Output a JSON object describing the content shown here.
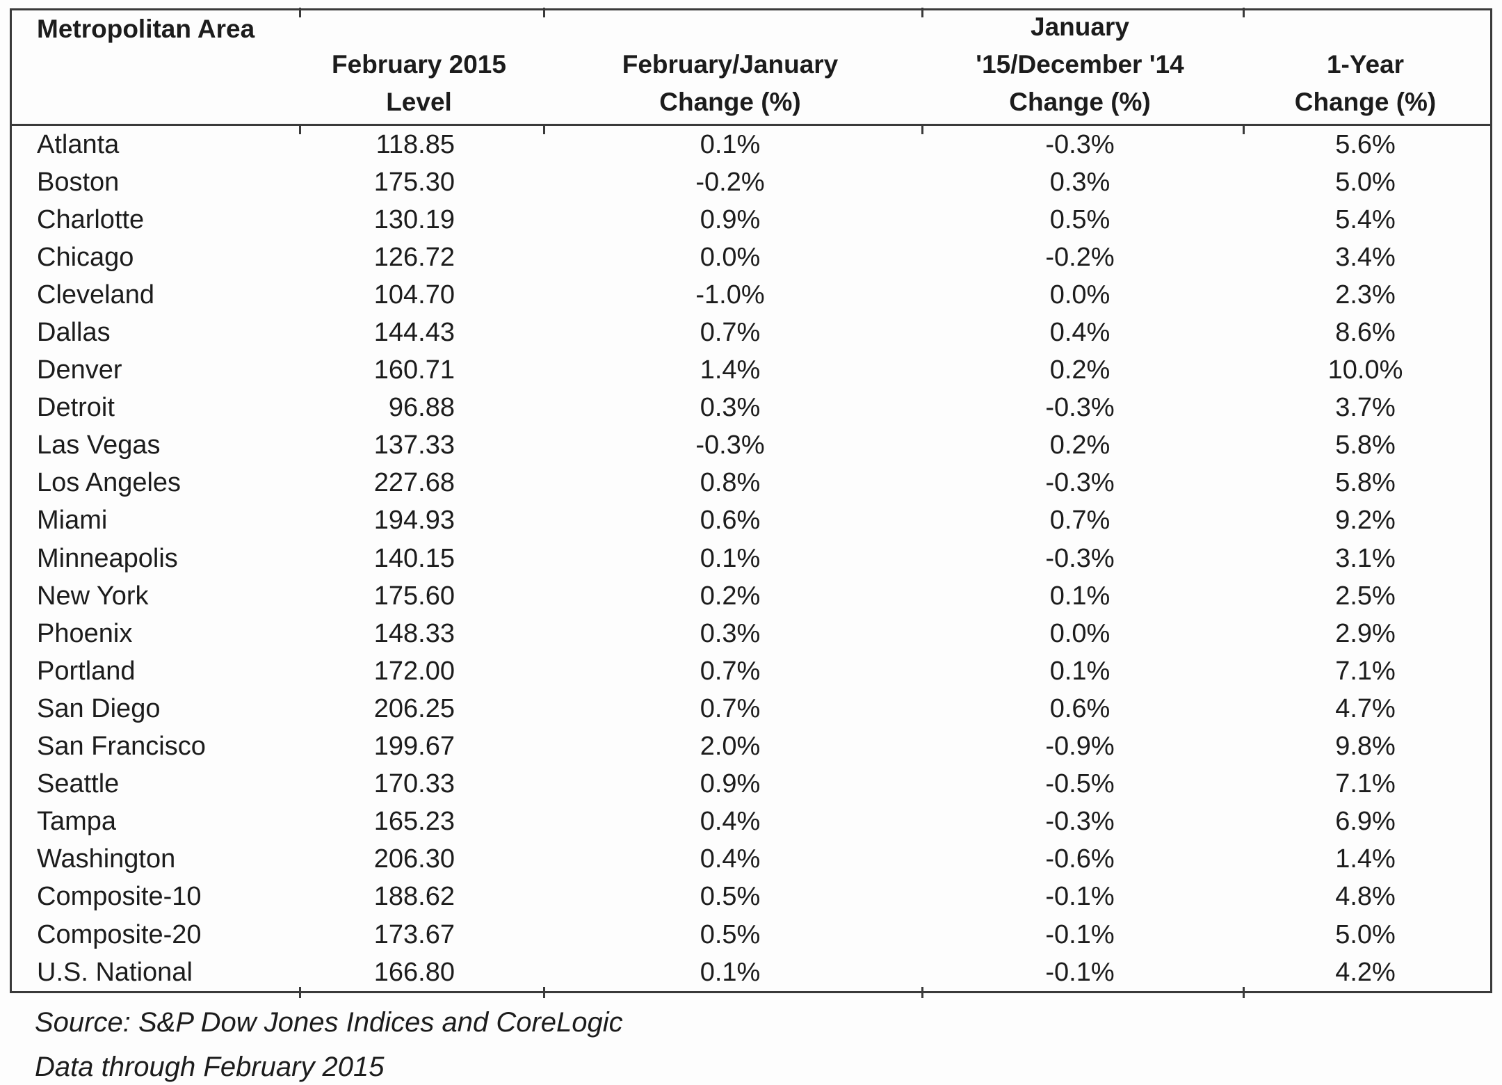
{
  "table": {
    "header": {
      "cols": [
        {
          "lines": [
            "Metropolitan Area"
          ]
        },
        {
          "lines": [
            "February 2015",
            "Level"
          ]
        },
        {
          "lines": [
            "February/January",
            "Change (%)"
          ]
        },
        {
          "lines": [
            "January",
            "'15/December '14",
            "Change (%)"
          ]
        },
        {
          "lines": [
            "1-Year",
            "Change (%)"
          ]
        }
      ]
    }
  },
  "chart_data": {
    "type": "table",
    "columns": [
      "Metropolitan Area",
      "February 2015 Level",
      "February/January Change (%)",
      "January '15/December '14 Change (%)",
      "1-Year Change (%)"
    ],
    "rows": [
      [
        "Atlanta",
        "118.85",
        "0.1%",
        "-0.3%",
        "5.6%"
      ],
      [
        "Boston",
        "175.30",
        "-0.2%",
        "0.3%",
        "5.0%"
      ],
      [
        "Charlotte",
        "130.19",
        "0.9%",
        "0.5%",
        "5.4%"
      ],
      [
        "Chicago",
        "126.72",
        "0.0%",
        "-0.2%",
        "3.4%"
      ],
      [
        "Cleveland",
        "104.70",
        "-1.0%",
        "0.0%",
        "2.3%"
      ],
      [
        "Dallas",
        "144.43",
        "0.7%",
        "0.4%",
        "8.6%"
      ],
      [
        "Denver",
        "160.71",
        "1.4%",
        "0.2%",
        "10.0%"
      ],
      [
        "Detroit",
        "96.88",
        "0.3%",
        "-0.3%",
        "3.7%"
      ],
      [
        "Las Vegas",
        "137.33",
        "-0.3%",
        "0.2%",
        "5.8%"
      ],
      [
        "Los Angeles",
        "227.68",
        "0.8%",
        "-0.3%",
        "5.8%"
      ],
      [
        "Miami",
        "194.93",
        "0.6%",
        "0.7%",
        "9.2%"
      ],
      [
        "Minneapolis",
        "140.15",
        "0.1%",
        "-0.3%",
        "3.1%"
      ],
      [
        "New York",
        "175.60",
        "0.2%",
        "0.1%",
        "2.5%"
      ],
      [
        "Phoenix",
        "148.33",
        "0.3%",
        "0.0%",
        "2.9%"
      ],
      [
        "Portland",
        "172.00",
        "0.7%",
        "0.1%",
        "7.1%"
      ],
      [
        "San Diego",
        "206.25",
        "0.7%",
        "0.6%",
        "4.7%"
      ],
      [
        "San Francisco",
        "199.67",
        "2.0%",
        "-0.9%",
        "9.8%"
      ],
      [
        "Seattle",
        "170.33",
        "0.9%",
        "-0.5%",
        "7.1%"
      ],
      [
        "Tampa",
        "165.23",
        "0.4%",
        "-0.3%",
        "6.9%"
      ],
      [
        "Washington",
        "206.30",
        "0.4%",
        "-0.6%",
        "1.4%"
      ],
      [
        "Composite-10",
        "188.62",
        "0.5%",
        "-0.1%",
        "4.8%"
      ],
      [
        "Composite-20",
        "173.67",
        "0.5%",
        "-0.1%",
        "5.0%"
      ],
      [
        "U.S. National",
        "166.80",
        "0.1%",
        "-0.1%",
        "4.2%"
      ]
    ]
  },
  "footer": {
    "source": "Source: S&P Dow Jones Indices and CoreLogic",
    "data_through": "Data through February 2015"
  },
  "colors": {
    "text": "#1c1c1c",
    "border": "#3a3a3a",
    "background": "#fdfdfd"
  }
}
